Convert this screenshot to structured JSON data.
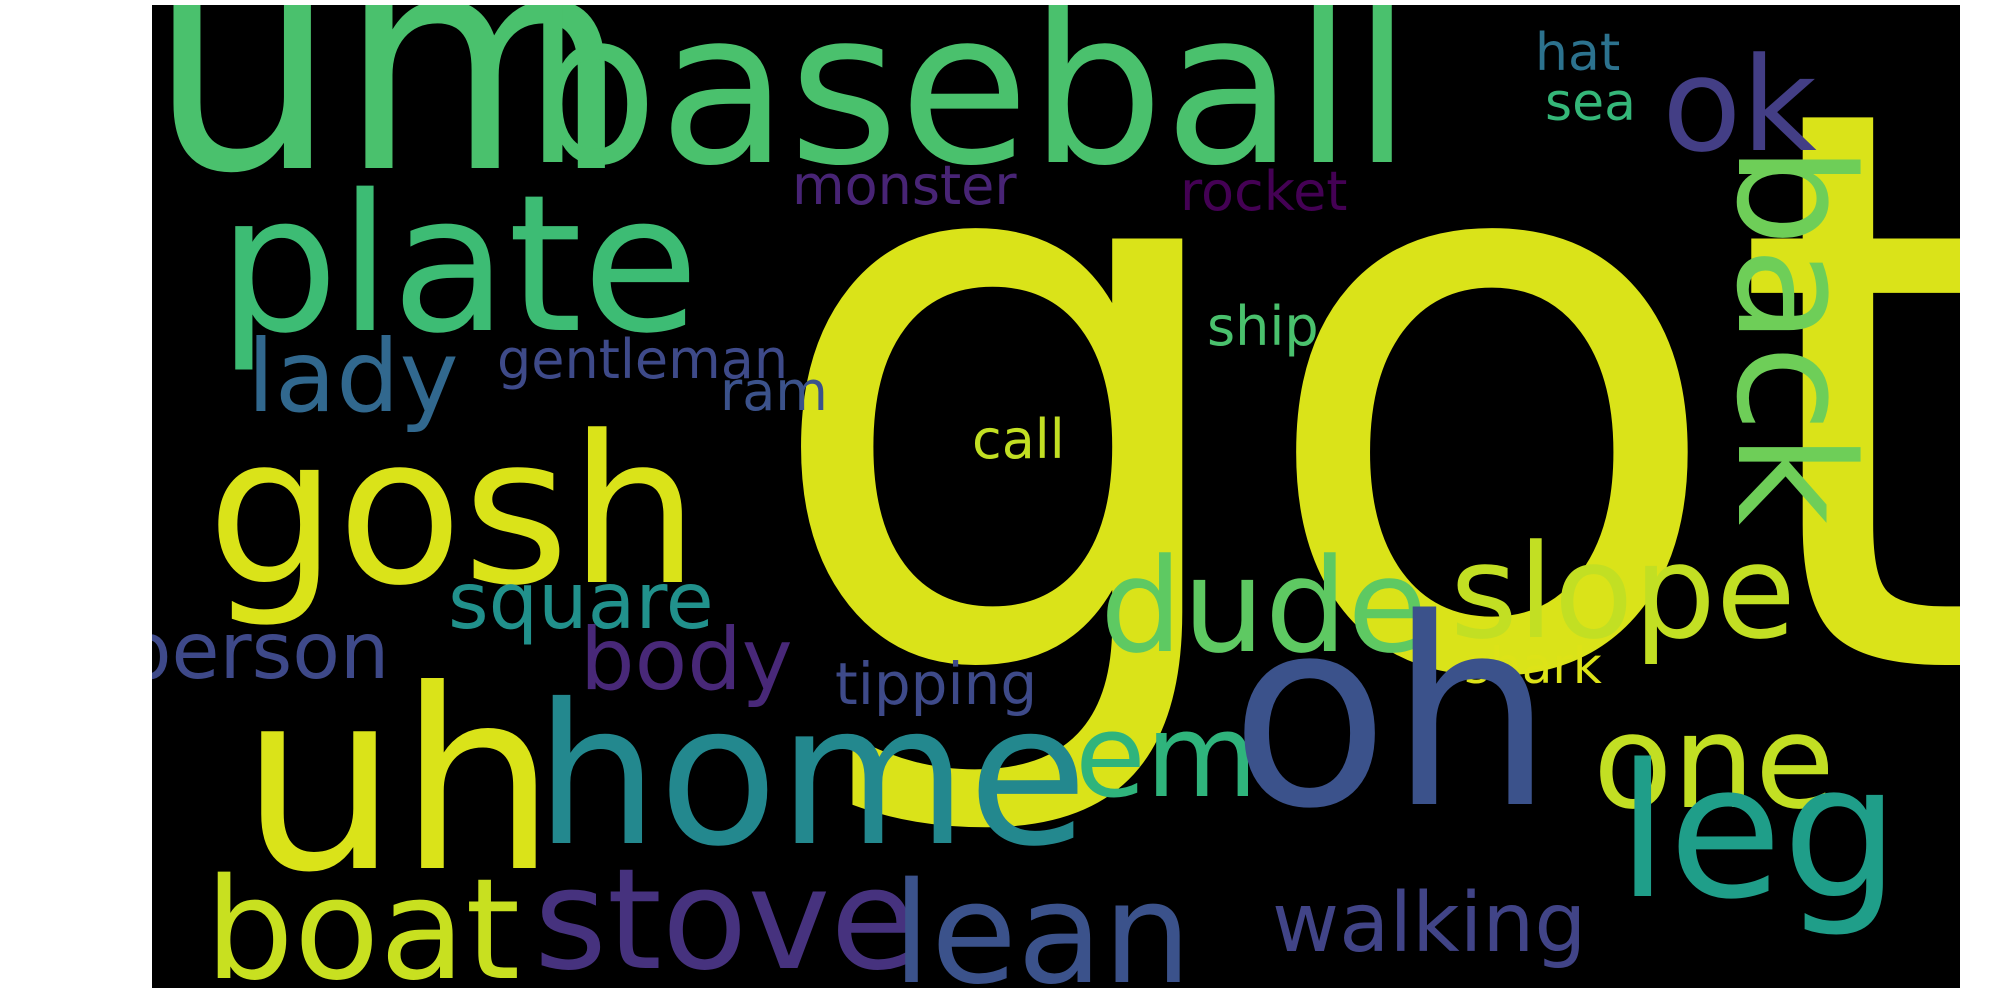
{
  "words": [
    {
      "text": "got",
      "color": "#dae319"
    },
    {
      "text": "um",
      "color": "#4ac16d"
    },
    {
      "text": "baseball",
      "color": "#4ac16d"
    },
    {
      "text": "ok",
      "color": "#433e85"
    },
    {
      "text": "hat",
      "color": "#2c728e"
    },
    {
      "text": "sea",
      "color": "#35b779"
    },
    {
      "text": "plate",
      "color": "#3dbc74"
    },
    {
      "text": "monster",
      "color": "#482475"
    },
    {
      "text": "rocket",
      "color": "#440154"
    },
    {
      "text": "back",
      "color": "#6ece58"
    },
    {
      "text": "lady",
      "color": "#31688e"
    },
    {
      "text": "gentleman",
      "color": "#3e4a89"
    },
    {
      "text": "ram",
      "color": "#3b528b"
    },
    {
      "text": "ship",
      "color": "#4ac16d"
    },
    {
      "text": "gosh",
      "color": "#dae319"
    },
    {
      "text": "call",
      "color": "#c2df23"
    },
    {
      "text": "dude",
      "color": "#5ec962"
    },
    {
      "text": "slope",
      "color": "#c2df23"
    },
    {
      "text": "square",
      "color": "#21918c"
    },
    {
      "text": "body",
      "color": "#482878"
    },
    {
      "text": "person",
      "color": "#3e4989"
    },
    {
      "text": "shark",
      "color": "#dde318"
    },
    {
      "text": "tipping",
      "color": "#3e4a89"
    },
    {
      "text": "uh",
      "color": "#dae319"
    },
    {
      "text": "home",
      "color": "#23888e"
    },
    {
      "text": "em",
      "color": "#2fb47c"
    },
    {
      "text": "oh",
      "color": "#3b528b"
    },
    {
      "text": "one",
      "color": "#c2df23"
    },
    {
      "text": "leg",
      "color": "#1f9e89"
    },
    {
      "text": "boat",
      "color": "#c8e020"
    },
    {
      "text": "stove",
      "color": "#46327e"
    },
    {
      "text": "lean",
      "color": "#3b528b"
    },
    {
      "text": "walking",
      "color": "#414487"
    }
  ]
}
